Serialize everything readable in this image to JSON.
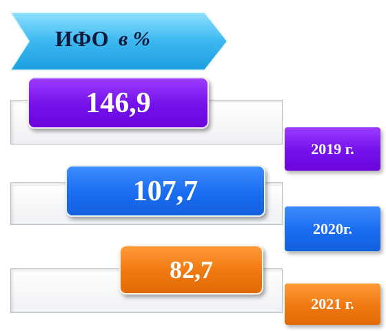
{
  "title": {
    "main": "ИФО",
    "unit": "в %"
  },
  "rows": [
    {
      "value": "146,9",
      "year": "2019 г."
    },
    {
      "value": "107,7",
      "year": "2020г."
    },
    {
      "value": "82,7",
      "year": "2021 г."
    }
  ]
}
